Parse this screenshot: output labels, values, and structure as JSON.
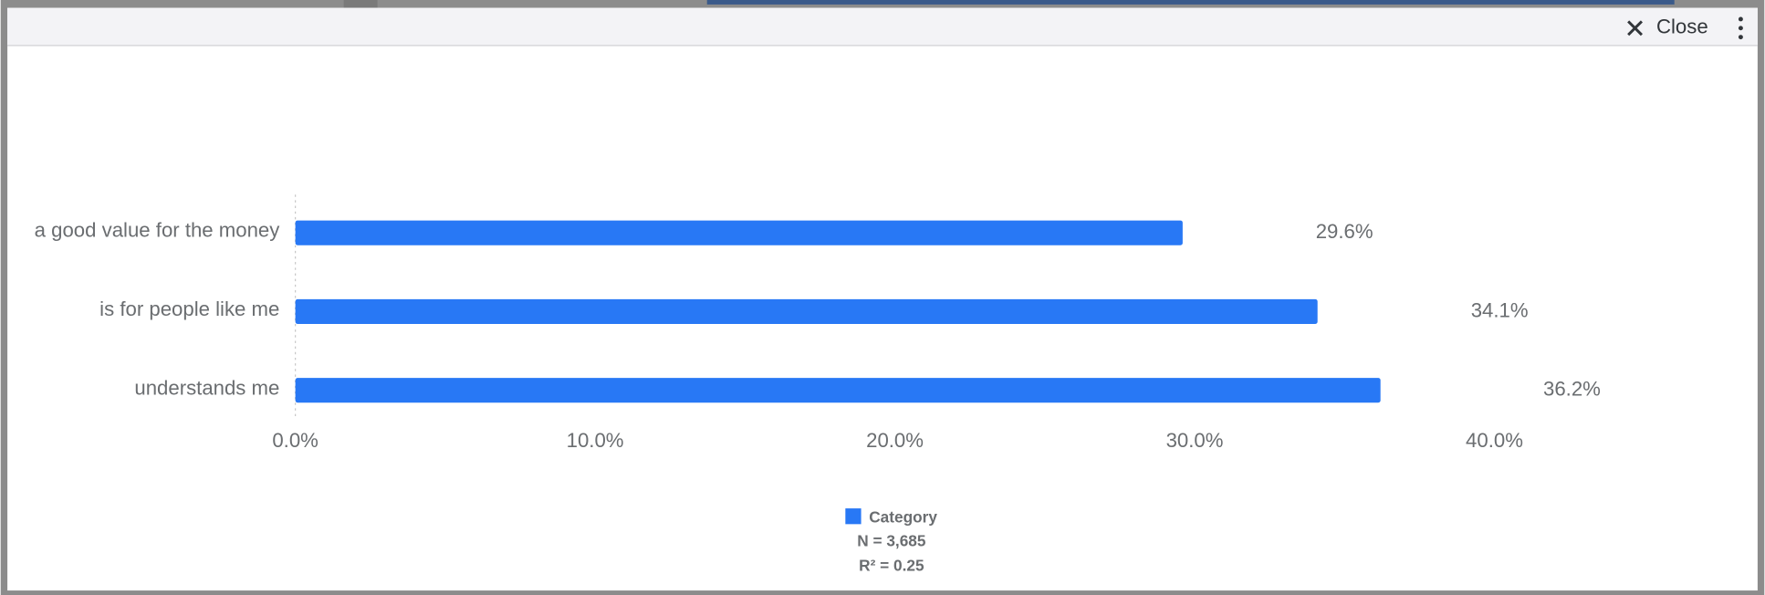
{
  "header": {
    "close": "Close"
  },
  "chart_data": {
    "type": "bar",
    "orientation": "horizontal",
    "categories": [
      "a good value for the money",
      "is for people like me",
      "understands me"
    ],
    "series": [
      {
        "name": "Category",
        "color": "#2878f5",
        "values": [
          29.6,
          34.1,
          36.2
        ],
        "value_labels": [
          "29.6%",
          "34.1%",
          "36.2%"
        ]
      }
    ],
    "xlim": [
      0,
      40
    ],
    "xticks": [
      {
        "value": 0,
        "label": "0.0%"
      },
      {
        "value": 10,
        "label": "10.0%"
      },
      {
        "value": 20,
        "label": "20.0%"
      },
      {
        "value": 30,
        "label": "30.0%"
      },
      {
        "value": 40,
        "label": "40.0%"
      }
    ],
    "annotations": [
      "N = 3,685",
      "R² = 0.25"
    ]
  }
}
